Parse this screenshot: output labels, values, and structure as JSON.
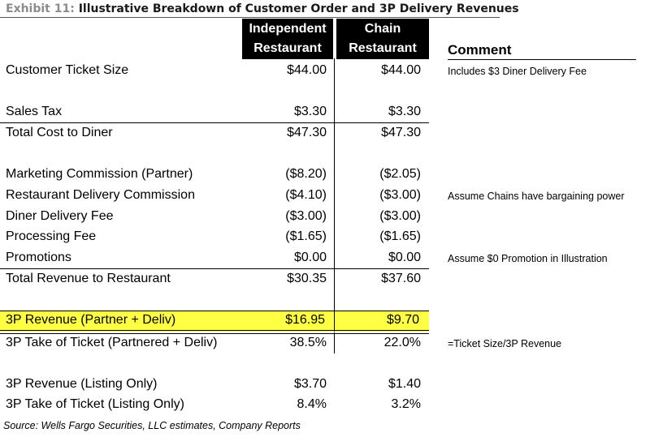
{
  "title": {
    "exhibit": "Exhibit 11:",
    "text": "Illustrative Breakdown of Customer Order and 3P Delivery Revenues"
  },
  "columns": {
    "independent": [
      "Independent",
      "Restaurant"
    ],
    "chain": [
      "Chain",
      "Restaurant"
    ],
    "comment": "Comment"
  },
  "rows": [
    {
      "label": "Customer Ticket Size",
      "independent": "$44.00",
      "chain": "$44.00",
      "comment": "Includes $3 Diner Delivery Fee"
    },
    {
      "label": "Sales Tax",
      "independent": "$3.30",
      "chain": "$3.30",
      "comment": ""
    },
    {
      "label": "Total Cost to Diner",
      "independent": "$47.30",
      "chain": "$47.30",
      "comment": ""
    },
    {
      "label": "Marketing Commission (Partner)",
      "independent": "($8.20)",
      "chain": "($2.05)",
      "comment": ""
    },
    {
      "label": "Restaurant Delivery Commission",
      "independent": "($4.10)",
      "chain": "($3.00)",
      "comment": "Assume Chains have bargaining power"
    },
    {
      "label": "Diner Delivery Fee",
      "independent": "($3.00)",
      "chain": "($3.00)",
      "comment": ""
    },
    {
      "label": "Processing Fee",
      "independent": "($1.65)",
      "chain": "($1.65)",
      "comment": ""
    },
    {
      "label": "Promotions",
      "independent": "$0.00",
      "chain": "$0.00",
      "comment": "Assume $0 Promotion in Illustration"
    },
    {
      "label": "Total Revenue to Restaurant",
      "independent": "$30.35",
      "chain": "$37.60",
      "comment": ""
    },
    {
      "label": "3P Revenue (Partner + Deliv)",
      "independent": "$16.95",
      "chain": "$9.70",
      "comment": "",
      "highlight_color": "#ffff44"
    },
    {
      "label": "3P Take of Ticket (Partnered + Deliv)",
      "independent": "38.5%",
      "chain": "22.0%",
      "comment": "=Ticket Size/3P Revenue"
    },
    {
      "label": "3P Revenue (Listing Only)",
      "independent": "$3.70",
      "chain": "$1.40",
      "comment": ""
    },
    {
      "label": "3P Take of Ticket (Listing Only)",
      "independent": "8.4%",
      "chain": "3.2%",
      "comment": ""
    }
  ],
  "source": "Source: Wells Fargo Securities, LLC estimates, Company Reports"
}
